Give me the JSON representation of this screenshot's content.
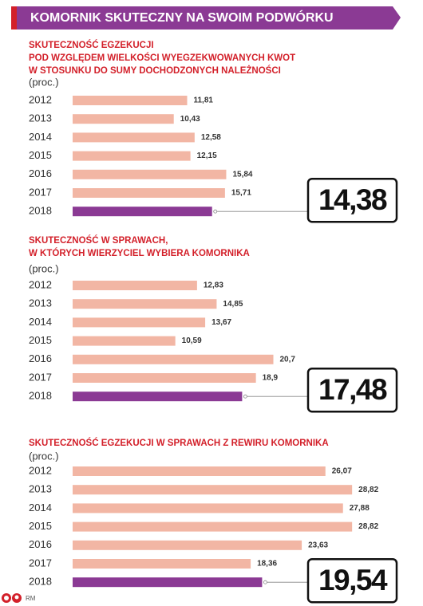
{
  "title": "KOMORNIK SKUTECZNY NA SWOIM PODWÓRKU",
  "credit": "RM",
  "chart_data": [
    {
      "type": "bar",
      "title": [
        "SKUTECZNOŚĆ EGZEKUCJI",
        "POD WZGLĘDEM WIELKOŚCI WYEGZEKWOWANYCH KWOT",
        "W STOSUNKU DO SUMY DOCHODZONYCH NALEŻNOŚCI"
      ],
      "unit": "(proc.)",
      "categories": [
        "2012",
        "2013",
        "2014",
        "2015",
        "2016",
        "2017",
        "2018"
      ],
      "values": [
        11.81,
        10.43,
        12.58,
        12.15,
        15.84,
        15.71,
        14.38
      ],
      "value_labels": [
        "11,81",
        "10,43",
        "12,58",
        "12,15",
        "15,84",
        "15,71",
        "14,38"
      ],
      "colors": [
        "#f2b6a4",
        "#f2b6a4",
        "#f2b6a4",
        "#f2b6a4",
        "#f2b6a4",
        "#f2b6a4",
        "#8b3a94"
      ]
    },
    {
      "type": "bar",
      "title": [
        "SKUTECZNOŚĆ W SPRAWACH,",
        "W KTÓRYCH WIERZYCIEL WYBIERA KOMORNIKA"
      ],
      "unit": "(proc.)",
      "categories": [
        "2012",
        "2013",
        "2014",
        "2015",
        "2016",
        "2017",
        "2018"
      ],
      "values": [
        12.83,
        14.85,
        13.67,
        10.59,
        20.7,
        18.9,
        17.48
      ],
      "value_labels": [
        "12,83",
        "14,85",
        "13,67",
        "10,59",
        "20,7",
        "18,9",
        "17,48"
      ],
      "colors": [
        "#f2b6a4",
        "#f2b6a4",
        "#f2b6a4",
        "#f2b6a4",
        "#f2b6a4",
        "#f2b6a4",
        "#8b3a94"
      ]
    },
    {
      "type": "bar",
      "title": [
        "SKUTECZNOŚĆ EGZEKUCJI W SPRAWACH Z REWIRU KOMORNIKA"
      ],
      "unit": "(proc.)",
      "categories": [
        "2012",
        "2013",
        "2014",
        "2015",
        "2016",
        "2017",
        "2018"
      ],
      "values": [
        26.07,
        28.82,
        27.88,
        28.82,
        23.63,
        18.36,
        19.54
      ],
      "value_labels": [
        "26,07",
        "28,82",
        "27,88",
        "28,82",
        "23,63",
        "18,36",
        "19,54"
      ],
      "colors": [
        "#f2b6a4",
        "#f2b6a4",
        "#f2b6a4",
        "#f2b6a4",
        "#f2b6a4",
        "#f2b6a4",
        "#8b3a94"
      ]
    }
  ]
}
